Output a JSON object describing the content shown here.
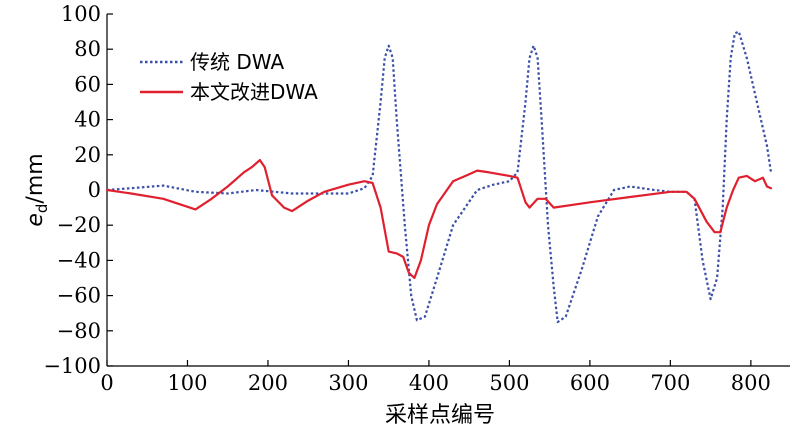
{
  "chart_data": {
    "type": "line",
    "xlabel": "采样点编号",
    "ylabel_main": "e",
    "ylabel_sub": "d",
    "ylabel_unit": "/mm",
    "xlim": [
      0,
      830
    ],
    "ylim": [
      -100,
      100
    ],
    "xticks": [
      0,
      100,
      200,
      300,
      400,
      500,
      600,
      700,
      800
    ],
    "yticks": [
      -100,
      -80,
      -60,
      -40,
      -20,
      0,
      20,
      40,
      60,
      80,
      100
    ],
    "grid": false,
    "legend_position": "top-left",
    "series": [
      {
        "name": "传统 DWA",
        "style": "dotted",
        "color": "#3a4fa8",
        "points": [
          [
            0,
            0
          ],
          [
            30,
            1
          ],
          [
            70,
            2.5
          ],
          [
            110,
            -1
          ],
          [
            150,
            -2
          ],
          [
            185,
            0
          ],
          [
            230,
            -2
          ],
          [
            300,
            -2
          ],
          [
            320,
            1
          ],
          [
            330,
            8
          ],
          [
            340,
            50
          ],
          [
            345,
            75
          ],
          [
            350,
            82
          ],
          [
            355,
            75
          ],
          [
            360,
            40
          ],
          [
            370,
            -20
          ],
          [
            378,
            -60
          ],
          [
            385,
            -74
          ],
          [
            395,
            -72
          ],
          [
            410,
            -50
          ],
          [
            430,
            -20
          ],
          [
            460,
            0
          ],
          [
            480,
            3
          ],
          [
            500,
            5
          ],
          [
            510,
            10
          ],
          [
            520,
            50
          ],
          [
            525,
            75
          ],
          [
            530,
            82
          ],
          [
            535,
            75
          ],
          [
            540,
            40
          ],
          [
            548,
            -20
          ],
          [
            555,
            -55
          ],
          [
            560,
            -75
          ],
          [
            570,
            -72
          ],
          [
            590,
            -45
          ],
          [
            610,
            -15
          ],
          [
            630,
            0
          ],
          [
            650,
            2
          ],
          [
            680,
            0
          ],
          [
            700,
            -1
          ],
          [
            720,
            -1
          ],
          [
            730,
            -5
          ],
          [
            740,
            -40
          ],
          [
            750,
            -62
          ],
          [
            758,
            -50
          ],
          [
            765,
            -10
          ],
          [
            770,
            40
          ],
          [
            775,
            75
          ],
          [
            780,
            89
          ],
          [
            785,
            90
          ],
          [
            795,
            75
          ],
          [
            810,
            45
          ],
          [
            820,
            25
          ],
          [
            825,
            10
          ]
        ]
      },
      {
        "name": "本文改进DWA",
        "style": "solid",
        "color": "#e0202e",
        "points": [
          [
            0,
            0
          ],
          [
            30,
            -2
          ],
          [
            70,
            -5
          ],
          [
            110,
            -11
          ],
          [
            130,
            -5
          ],
          [
            150,
            2
          ],
          [
            170,
            10
          ],
          [
            180,
            13
          ],
          [
            190,
            17
          ],
          [
            196,
            13
          ],
          [
            205,
            -3
          ],
          [
            220,
            -10
          ],
          [
            230,
            -12
          ],
          [
            250,
            -6
          ],
          [
            270,
            -1
          ],
          [
            300,
            3
          ],
          [
            320,
            5
          ],
          [
            330,
            4
          ],
          [
            340,
            -10
          ],
          [
            350,
            -35
          ],
          [
            360,
            -36
          ],
          [
            368,
            -38
          ],
          [
            375,
            -47
          ],
          [
            382,
            -50
          ],
          [
            390,
            -40
          ],
          [
            400,
            -20
          ],
          [
            410,
            -8
          ],
          [
            430,
            5
          ],
          [
            450,
            9
          ],
          [
            460,
            11
          ],
          [
            475,
            10
          ],
          [
            500,
            8
          ],
          [
            510,
            7
          ],
          [
            520,
            -7
          ],
          [
            525,
            -10
          ],
          [
            535,
            -5
          ],
          [
            545,
            -5
          ],
          [
            555,
            -10
          ],
          [
            600,
            -7
          ],
          [
            650,
            -4
          ],
          [
            700,
            -1
          ],
          [
            720,
            -1
          ],
          [
            730,
            -5
          ],
          [
            745,
            -18
          ],
          [
            755,
            -24
          ],
          [
            762,
            -24
          ],
          [
            770,
            -10
          ],
          [
            778,
            0
          ],
          [
            785,
            7
          ],
          [
            795,
            8
          ],
          [
            805,
            5
          ],
          [
            815,
            7
          ],
          [
            820,
            2
          ],
          [
            825,
            1
          ]
        ]
      }
    ]
  }
}
